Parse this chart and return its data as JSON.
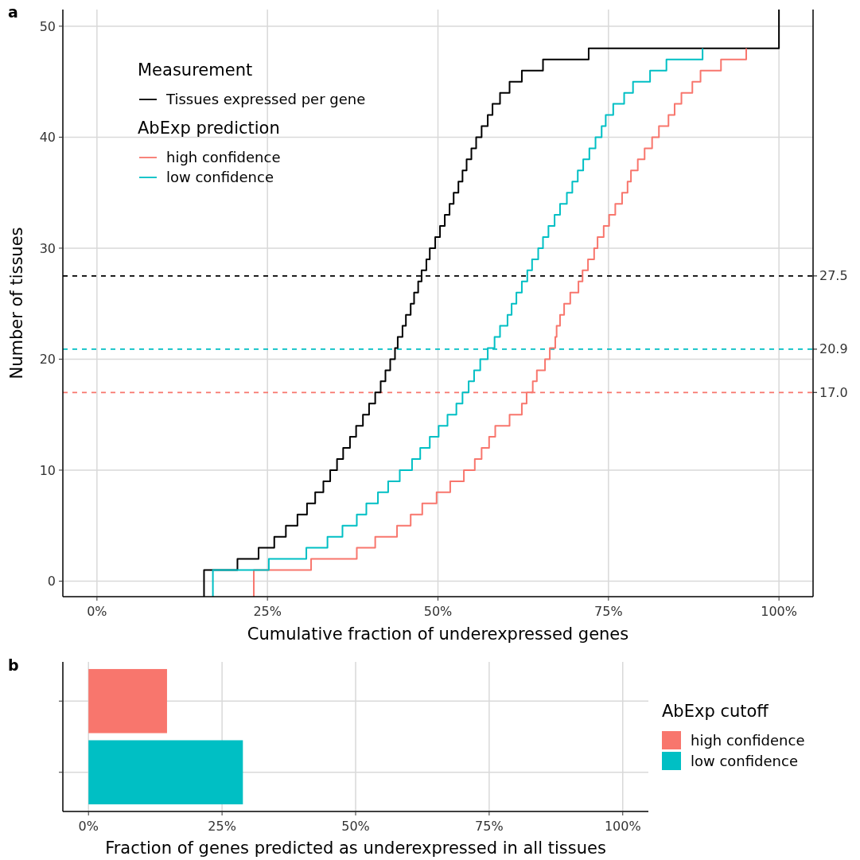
{
  "chart_data": [
    {
      "type": "step",
      "title": "a",
      "xlabel": "Cumulative fraction of underexpressed genes",
      "ylabel": "Number of tissues",
      "legend_title": "Measurement",
      "annotations": [
        "AbExp prediction"
      ],
      "legend": "top left",
      "grid": true,
      "xlim": [
        -5,
        105
      ],
      "xticks": [
        {
          "value": 0,
          "label": "0%"
        },
        {
          "value": 25,
          "label": "25%"
        },
        {
          "value": 50,
          "label": "50%"
        },
        {
          "value": 75,
          "label": "75%"
        },
        {
          "value": 100,
          "label": "100%"
        }
      ],
      "ylim": [
        -1.4,
        51.5
      ],
      "yticks": [
        0,
        10,
        20,
        30,
        40,
        50
      ],
      "ref_lines": [
        {
          "axis": "y",
          "value": 27.5,
          "label": "27.5",
          "color": "#000000",
          "line_style": "dashed"
        },
        {
          "axis": "y",
          "value": 20.9,
          "label": "20.9",
          "color": "#00bfc4",
          "line_style": "dashed"
        },
        {
          "axis": "y",
          "value": 17.0,
          "label": "17.0",
          "color": "#f8766d",
          "line_style": "dashed"
        }
      ],
      "series": [
        {
          "name": "Tissues expressed per gene",
          "color": "#000000",
          "x": [
            15.7,
            15.7,
            20.6,
            23.7,
            26.0,
            27.7,
            29.4,
            30.8,
            32.0,
            33.2,
            34.2,
            35.2,
            36.1,
            37.1,
            38.0,
            39.0,
            39.9,
            40.8,
            41.6,
            42.3,
            43.0,
            43.7,
            44.1,
            44.8,
            45.3,
            46.0,
            46.5,
            47.1,
            47.6,
            48.3,
            48.8,
            49.6,
            50.3,
            51.0,
            51.7,
            52.3,
            53.0,
            53.6,
            54.2,
            54.9,
            55.6,
            56.4,
            57.3,
            58.0,
            59.1,
            60.5,
            62.3,
            65.4,
            72.1,
            100
          ],
          "values": [
            -1.4,
            1,
            2,
            3,
            4,
            5,
            6,
            7,
            8,
            9,
            10,
            11,
            12,
            13,
            14,
            15,
            16,
            17,
            18,
            19,
            20,
            21,
            22,
            23,
            24,
            25,
            26,
            27,
            28,
            29,
            30,
            31,
            32,
            33,
            34,
            35,
            36,
            37,
            38,
            39,
            40,
            41,
            42,
            43,
            44,
            45,
            46,
            47,
            48,
            51.5
          ]
        },
        {
          "name": "high confidence",
          "color": "#f8766d",
          "x": [
            23.0,
            23.0,
            31.4,
            38.1,
            40.8,
            44.0,
            46.0,
            47.7,
            49.8,
            51.8,
            53.8,
            55.4,
            56.4,
            57.5,
            58.4,
            60.5,
            62.3,
            63.0,
            63.9,
            64.5,
            65.7,
            66.4,
            67.2,
            67.4,
            67.9,
            68.5,
            69.4,
            70.6,
            71.2,
            72.0,
            72.9,
            73.4,
            74.3,
            75.1,
            76.0,
            77.0,
            77.8,
            78.3,
            79.3,
            80.3,
            81.4,
            82.4,
            83.8,
            84.7,
            85.7,
            87.3,
            88.5,
            91.5,
            95.2
          ],
          "values": [
            -1.4,
            1,
            2,
            3,
            4,
            5,
            6,
            7,
            8,
            9,
            10,
            11,
            12,
            13,
            14,
            15,
            16,
            17,
            18,
            19,
            20,
            21,
            22,
            23,
            24,
            25,
            26,
            27,
            28,
            29,
            30,
            31,
            32,
            33,
            34,
            35,
            36,
            37,
            38,
            39,
            40,
            41,
            42,
            43,
            44,
            45,
            46,
            47,
            48
          ]
        },
        {
          "name": "low confidence",
          "color": "#00bfc4",
          "x": [
            17.0,
            17.0,
            25.2,
            30.7,
            33.8,
            36.0,
            38.1,
            39.5,
            41.2,
            42.7,
            44.4,
            46.2,
            47.4,
            48.8,
            50.1,
            51.4,
            52.7,
            53.6,
            54.5,
            55.3,
            56.2,
            57.3,
            58.3,
            59.1,
            60.2,
            60.8,
            61.5,
            62.3,
            63.1,
            63.8,
            64.7,
            65.4,
            66.2,
            67.1,
            67.9,
            68.9,
            69.7,
            70.5,
            71.3,
            72.2,
            73.1,
            74.0,
            74.6,
            75.7,
            77.3,
            78.6,
            81.1,
            83.5,
            88.8
          ],
          "values": [
            -1.4,
            1,
            2,
            3,
            4,
            5,
            6,
            7,
            8,
            9,
            10,
            11,
            12,
            13,
            14,
            15,
            16,
            17,
            18,
            19,
            20,
            21,
            22,
            23,
            24,
            25,
            26,
            27,
            28,
            29,
            30,
            31,
            32,
            33,
            34,
            35,
            36,
            37,
            38,
            39,
            40,
            41,
            42,
            43,
            44,
            45,
            46,
            47,
            48
          ]
        }
      ]
    },
    {
      "type": "bar",
      "title": "b",
      "orientation": "horizontal",
      "xlabel": "Fraction of genes predicted as underexpressed in all tissues",
      "legend_title": "AbExp cutoff",
      "legend": "right",
      "grid": true,
      "categories": [
        null,
        null
      ],
      "xlim": [
        -4.8,
        104.8
      ],
      "xticks": [
        {
          "value": 0,
          "label": "0%"
        },
        {
          "value": 25,
          "label": "25%"
        },
        {
          "value": 50,
          "label": "50%"
        },
        {
          "value": 75,
          "label": "75%"
        },
        {
          "value": 100,
          "label": "100%"
        }
      ],
      "series": [
        {
          "name": "high confidence",
          "color": "#f8766d",
          "values": [
            14.7,
            null
          ]
        },
        {
          "name": "low confidence",
          "color": "#00bfc4",
          "values": [
            null,
            28.9
          ]
        }
      ]
    }
  ]
}
